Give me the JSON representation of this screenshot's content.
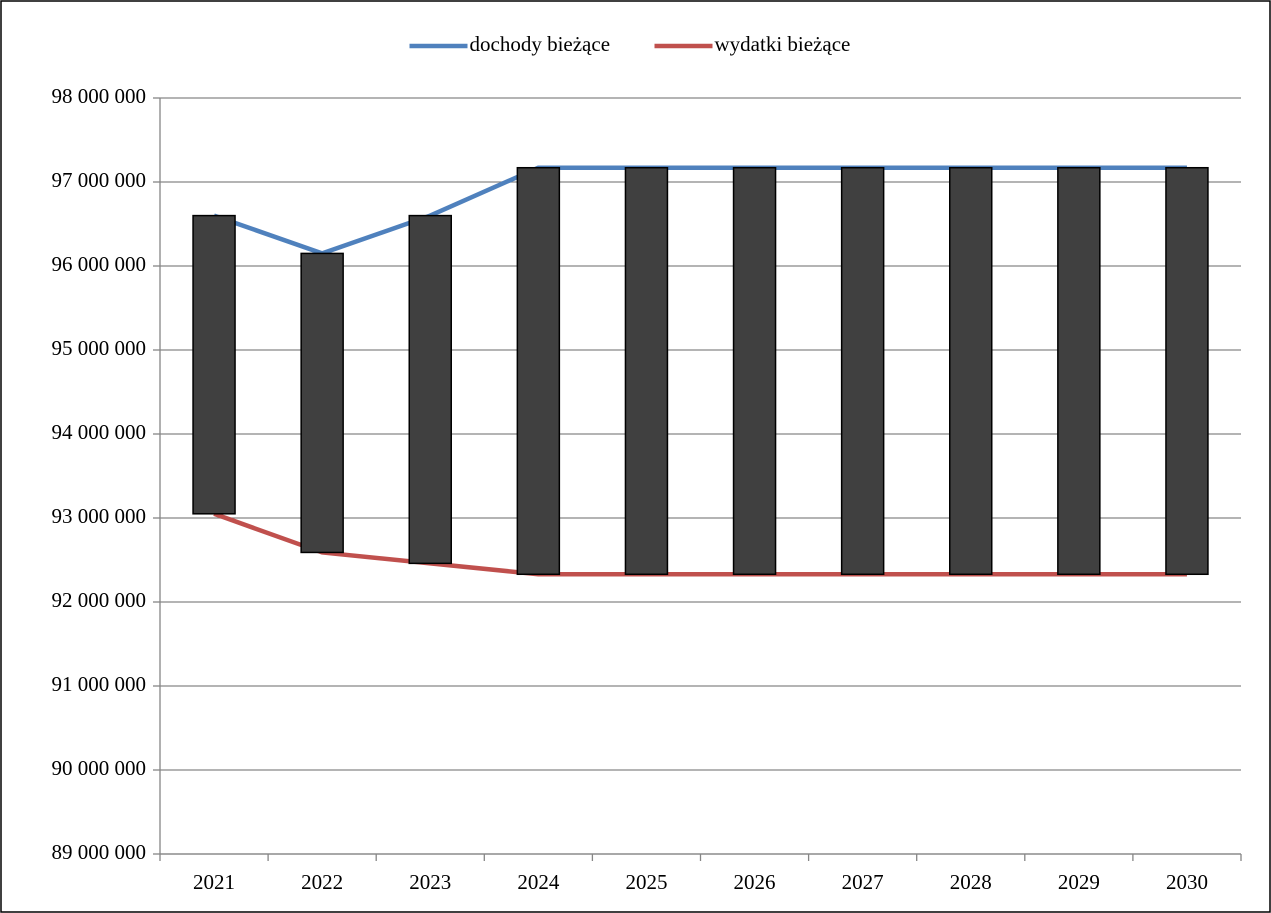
{
  "chart_data": {
    "type": "line",
    "categories": [
      "2021",
      "2022",
      "2023",
      "2024",
      "2025",
      "2026",
      "2027",
      "2028",
      "2029",
      "2030"
    ],
    "series": [
      {
        "name": "dochody bieżące",
        "color": "#4f81bd",
        "values": [
          96600000,
          96150000,
          96600000,
          97170000,
          97170000,
          97170000,
          97170000,
          97170000,
          97170000,
          97170000
        ]
      },
      {
        "name": "wydatki bieżące",
        "color": "#c0504d",
        "values": [
          93050000,
          92590000,
          92460000,
          92330000,
          92330000,
          92330000,
          92330000,
          92330000,
          92330000,
          92330000
        ]
      }
    ],
    "up_down_bars": true,
    "bar_color": "#404040",
    "ylim": [
      89000000,
      98000000
    ],
    "yticks": [
      {
        "value": 89000000,
        "label": "89 000 000"
      },
      {
        "value": 90000000,
        "label": "90 000 000"
      },
      {
        "value": 91000000,
        "label": "91 000 000"
      },
      {
        "value": 92000000,
        "label": "92 000 000"
      },
      {
        "value": 93000000,
        "label": "93 000 000"
      },
      {
        "value": 94000000,
        "label": "94 000 000"
      },
      {
        "value": 95000000,
        "label": "95 000 000"
      },
      {
        "value": 96000000,
        "label": "96 000 000"
      },
      {
        "value": 97000000,
        "label": "97 000 000"
      },
      {
        "value": 98000000,
        "label": "98 000 000"
      }
    ],
    "grid": true,
    "legend": "top"
  }
}
